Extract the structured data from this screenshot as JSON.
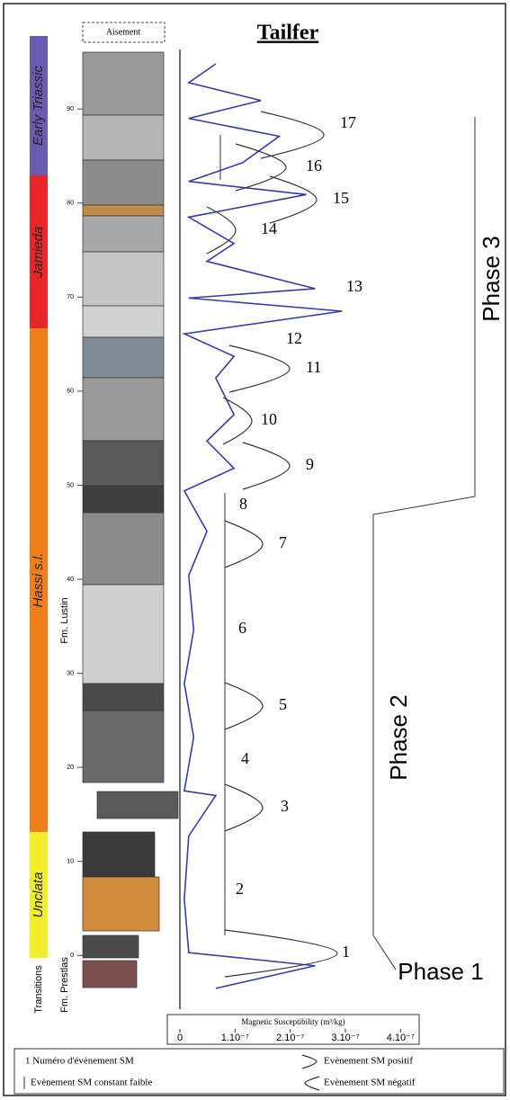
{
  "chart_data": {
    "type": "line",
    "title": "Tailfer",
    "outcrop": "Aisement",
    "xlabel": "Magnetic Susceptibility (m³/kg)",
    "xlim": [
      0,
      4.5e-07
    ],
    "xticks": [
      0,
      {
        "value": 1e-07,
        "label": "1.10⁻⁷"
      },
      {
        "value": 2e-07,
        "label": "2.10⁻⁷"
      },
      {
        "value": 3e-07,
        "label": "3.10⁻⁷"
      },
      {
        "value": 4e-07,
        "label": "4.10⁻⁷"
      }
    ],
    "ylim": [
      -6,
      97
    ],
    "yticks": [
      0,
      10,
      20,
      30,
      40,
      50,
      60,
      70,
      80,
      90
    ],
    "formations": [
      "Early Triassic",
      "Jamieda",
      "Hassi s.l.",
      "Unclata"
    ],
    "formation_colors": [
      "#6a5ab0",
      "#e8262a",
      "#f07f1a",
      "#f2ee2a"
    ],
    "members": [
      "Transitions",
      "Fm. Prestlas",
      "Fm. Lustin"
    ],
    "depth": [
      -3.5,
      -1.1,
      0.3,
      6,
      12.7,
      17,
      17.5,
      23.2,
      28.9,
      34.6,
      40.4,
      45.1,
      49.4,
      51.8,
      54.7,
      57.5,
      61.4,
      63.7,
      66.1,
      68.5,
      69.9,
      70.9,
      73.8,
      75.7,
      78.5,
      80.9,
      82.3,
      84.3,
      87.1,
      89,
      90.9,
      92.8,
      94.8
    ],
    "series": [
      {
        "color": "#3b3ba8",
        "values": [
          6.5e-08,
          2.45e-07,
          1.6e-08,
          8e-09,
          1.6e-08,
          6.5e-08,
          8e-09,
          2.5e-08,
          8e-09,
          2.5e-08,
          1.6e-08,
          4.9e-08,
          8e-09,
          9.8e-08,
          4.9e-08,
          9.8e-08,
          6.5e-08,
          9.8e-08,
          8e-09,
          2.94e-07,
          1.6e-08,
          2.45e-07,
          4.9e-08,
          9.8e-08,
          1.6e-08,
          2.29e-07,
          1.6e-08,
          1.14e-07,
          1.8e-07,
          1.6e-08,
          1.47e-07,
          1.6e-08,
          6.5e-08
        ]
      }
    ],
    "events": [
      "1",
      "2",
      "3",
      "4",
      "5",
      "6",
      "7",
      "8",
      "9",
      "10",
      "11",
      "12",
      "13",
      "14",
      "15",
      "16",
      "17"
    ],
    "phases": [
      "Phase 1",
      "Phase 2",
      "Phase 3"
    ],
    "legend": [
      "1  Numéro d'évènement SM",
      "Evènement SM constant faible",
      "Evènement SM positif",
      "Evènement SM négatif"
    ]
  }
}
